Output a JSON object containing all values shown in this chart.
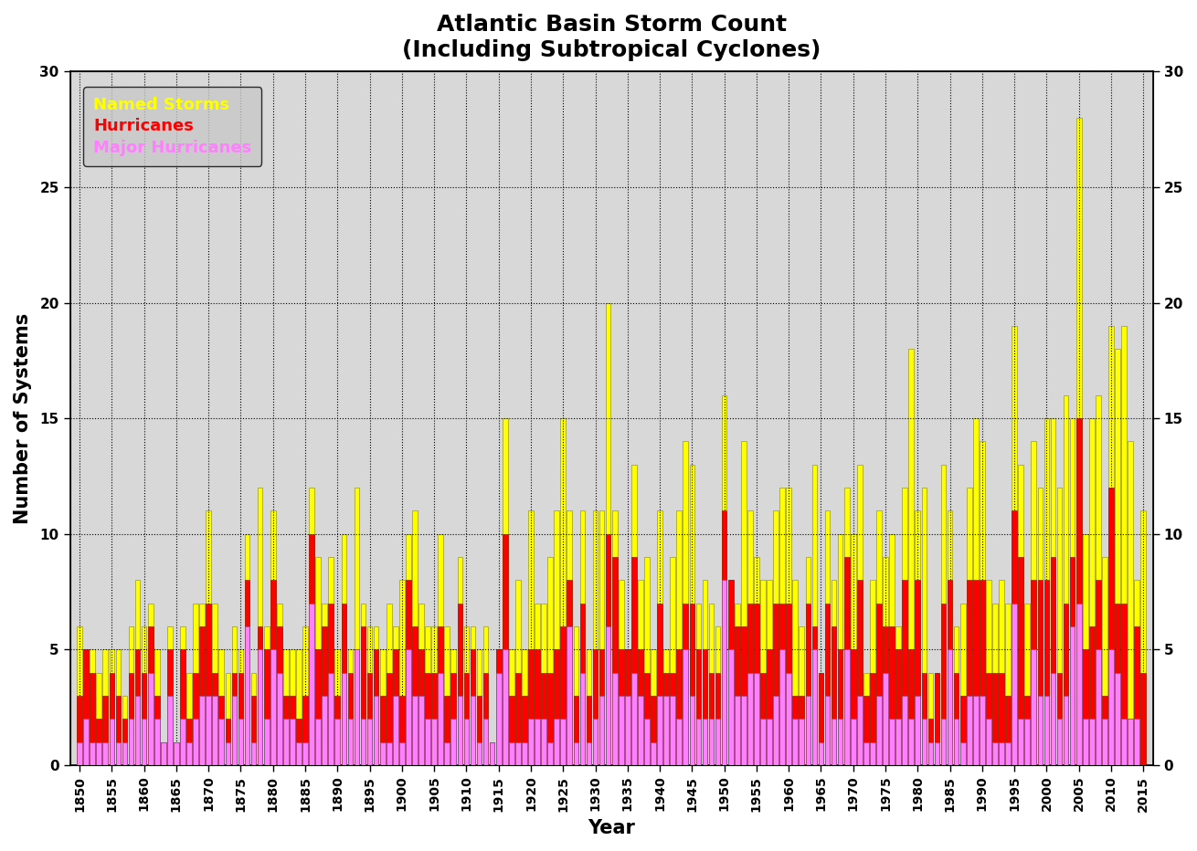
{
  "title_line1": "Atlantic Basin Storm Count",
  "title_line2": "(Including Subtropical Cyclones)",
  "xlabel": "Year",
  "ylabel": "Number of Systems",
  "ylim": [
    0,
    30
  ],
  "figure_bg_color": "#ffffff",
  "plot_bg_color": "#d8d8d8",
  "legend_bg_color": "#c8c8c8",
  "years": [
    1850,
    1851,
    1852,
    1853,
    1854,
    1855,
    1856,
    1857,
    1858,
    1859,
    1860,
    1861,
    1862,
    1863,
    1864,
    1865,
    1866,
    1867,
    1868,
    1869,
    1870,
    1871,
    1872,
    1873,
    1874,
    1875,
    1876,
    1877,
    1878,
    1879,
    1880,
    1881,
    1882,
    1883,
    1884,
    1885,
    1886,
    1887,
    1888,
    1889,
    1890,
    1891,
    1892,
    1893,
    1894,
    1895,
    1896,
    1897,
    1898,
    1899,
    1900,
    1901,
    1902,
    1903,
    1904,
    1905,
    1906,
    1907,
    1908,
    1909,
    1910,
    1911,
    1912,
    1913,
    1914,
    1915,
    1916,
    1917,
    1918,
    1919,
    1920,
    1921,
    1922,
    1923,
    1924,
    1925,
    1926,
    1927,
    1928,
    1929,
    1930,
    1931,
    1932,
    1933,
    1934,
    1935,
    1936,
    1937,
    1938,
    1939,
    1940,
    1941,
    1942,
    1943,
    1944,
    1945,
    1946,
    1947,
    1948,
    1949,
    1950,
    1951,
    1952,
    1953,
    1954,
    1955,
    1956,
    1957,
    1958,
    1959,
    1960,
    1961,
    1962,
    1963,
    1964,
    1965,
    1966,
    1967,
    1968,
    1969,
    1970,
    1971,
    1972,
    1973,
    1974,
    1975,
    1976,
    1977,
    1978,
    1979,
    1980,
    1981,
    1982,
    1983,
    1984,
    1985,
    1986,
    1987,
    1988,
    1989,
    1990,
    1991,
    1992,
    1993,
    1994,
    1995,
    1996,
    1997,
    1998,
    1999,
    2000,
    2001,
    2002,
    2003,
    2004,
    2005,
    2006,
    2007,
    2008,
    2009,
    2010,
    2011,
    2012,
    2013,
    2014,
    2015
  ],
  "named_storms": [
    6,
    5,
    5,
    4,
    5,
    5,
    5,
    3,
    6,
    8,
    6,
    7,
    5,
    1,
    6,
    1,
    6,
    4,
    7,
    7,
    11,
    7,
    5,
    4,
    6,
    5,
    10,
    4,
    12,
    6,
    11,
    7,
    5,
    5,
    5,
    6,
    12,
    9,
    7,
    9,
    5,
    10,
    5,
    12,
    7,
    6,
    6,
    5,
    7,
    6,
    8,
    10,
    11,
    7,
    6,
    6,
    10,
    6,
    5,
    9,
    6,
    6,
    5,
    6,
    1,
    5,
    15,
    5,
    8,
    5,
    11,
    7,
    7,
    9,
    11,
    15,
    11,
    6,
    11,
    5,
    11,
    11,
    20,
    11,
    8,
    5,
    13,
    8,
    9,
    5,
    11,
    5,
    9,
    11,
    14,
    13,
    7,
    8,
    7,
    6,
    16,
    8,
    7,
    14,
    11,
    9,
    8,
    8,
    11,
    12,
    12,
    8,
    6,
    9,
    13,
    4,
    11,
    8,
    10,
    12,
    10,
    13,
    4,
    8,
    11,
    9,
    10,
    6,
    12,
    18,
    11,
    12,
    4,
    4,
    13,
    11,
    6,
    7,
    12,
    15,
    14,
    8,
    7,
    8,
    7,
    19,
    13,
    7,
    14,
    12,
    15,
    15,
    12,
    16,
    15,
    28,
    10,
    15,
    16,
    9,
    19,
    18,
    19,
    14,
    8,
    11
  ],
  "hurricanes": [
    3,
    5,
    4,
    2,
    3,
    4,
    3,
    2,
    4,
    5,
    4,
    6,
    3,
    1,
    5,
    1,
    5,
    2,
    4,
    6,
    7,
    4,
    3,
    2,
    4,
    4,
    8,
    3,
    6,
    5,
    8,
    6,
    3,
    3,
    2,
    3,
    10,
    5,
    6,
    7,
    3,
    7,
    4,
    5,
    6,
    4,
    5,
    3,
    4,
    5,
    3,
    8,
    6,
    5,
    4,
    4,
    6,
    3,
    4,
    7,
    4,
    5,
    3,
    4,
    1,
    5,
    10,
    3,
    4,
    3,
    5,
    5,
    4,
    4,
    5,
    6,
    8,
    3,
    7,
    3,
    5,
    5,
    10,
    9,
    5,
    5,
    9,
    5,
    4,
    3,
    7,
    4,
    4,
    5,
    7,
    7,
    5,
    5,
    4,
    4,
    11,
    8,
    6,
    6,
    7,
    7,
    4,
    5,
    7,
    7,
    7,
    3,
    3,
    7,
    6,
    4,
    7,
    6,
    5,
    9,
    5,
    8,
    3,
    4,
    7,
    6,
    6,
    5,
    8,
    5,
    8,
    4,
    2,
    4,
    7,
    8,
    4,
    3,
    8,
    8,
    8,
    4,
    4,
    4,
    3,
    11,
    9,
    3,
    8,
    8,
    8,
    9,
    4,
    7,
    9,
    15,
    5,
    6,
    8,
    3,
    12,
    7,
    7,
    2,
    6,
    4
  ],
  "major_hurricanes": [
    1,
    2,
    1,
    1,
    1,
    2,
    1,
    1,
    2,
    3,
    2,
    4,
    2,
    1,
    3,
    1,
    2,
    1,
    2,
    3,
    3,
    3,
    2,
    1,
    3,
    2,
    6,
    1,
    5,
    2,
    5,
    4,
    2,
    2,
    1,
    1,
    7,
    2,
    3,
    4,
    2,
    4,
    2,
    5,
    2,
    2,
    3,
    1,
    1,
    3,
    1,
    5,
    3,
    3,
    2,
    2,
    4,
    1,
    2,
    3,
    2,
    3,
    1,
    2,
    1,
    4,
    5,
    1,
    1,
    1,
    2,
    2,
    2,
    1,
    2,
    2,
    6,
    1,
    4,
    1,
    2,
    3,
    6,
    4,
    3,
    3,
    4,
    3,
    2,
    1,
    3,
    3,
    3,
    2,
    5,
    3,
    2,
    2,
    2,
    2,
    8,
    5,
    3,
    3,
    4,
    4,
    2,
    2,
    3,
    5,
    4,
    2,
    2,
    3,
    5,
    1,
    3,
    2,
    2,
    5,
    2,
    3,
    1,
    1,
    3,
    4,
    2,
    2,
    3,
    2,
    3,
    2,
    1,
    1,
    2,
    5,
    2,
    1,
    3,
    3,
    3,
    2,
    1,
    1,
    1,
    7,
    2,
    2,
    5,
    3,
    3,
    4,
    2,
    3,
    6,
    7,
    2,
    2,
    5,
    2,
    5,
    4,
    2,
    2,
    2,
    0
  ],
  "named_color": "#ffff00",
  "hurricane_color": "#ff0000",
  "major_color": "#ff80ff",
  "bar_width": 0.8
}
